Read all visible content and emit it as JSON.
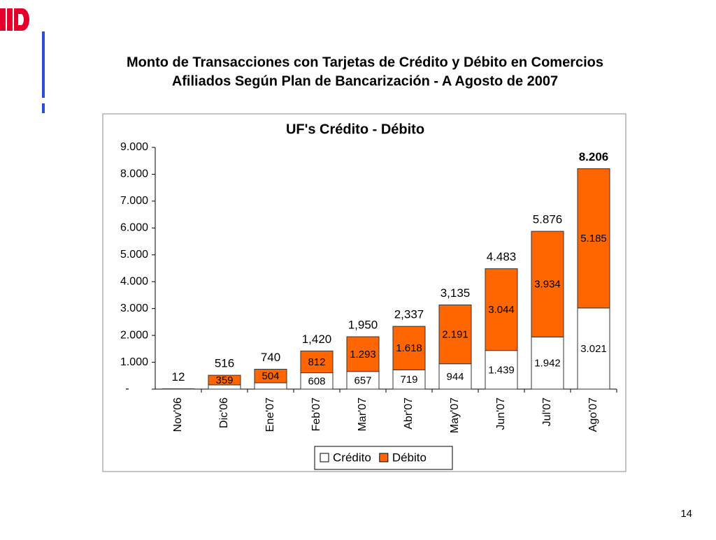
{
  "slide_title": [
    "Monto de Transacciones con Tarjetas de Crédito y Débito en Comercios",
    "Afiliados Según Plan de Bancarización - A Agosto de 2007"
  ],
  "page_number": "14",
  "chart_data": {
    "type": "stacked_bar",
    "title": "UF's Crédito - Débito",
    "categories": [
      "Nov'06",
      "Dic'06",
      "Ene'07",
      "Feb'07",
      "Mar'07",
      "Abr'07",
      "May'07",
      "Jun'07",
      "Jul'07",
      "Ago'07"
    ],
    "series": [
      {
        "name": "Crédito",
        "color": "#ffffff",
        "values": [
          12,
          157,
          236,
          608,
          657,
          719,
          944,
          1439,
          1942,
          3021
        ],
        "value_labels": [
          null,
          null,
          null,
          "608",
          "657",
          "719",
          "944",
          "1.439",
          "1.942",
          "3.021"
        ]
      },
      {
        "name": "Débito",
        "color": "#ff6600",
        "values": [
          0,
          359,
          504,
          812,
          1293,
          1618,
          2191,
          3044,
          3934,
          5185
        ],
        "value_labels": [
          null,
          "359",
          "504",
          "812",
          "1.293",
          "1.618",
          "2.191",
          "3.044",
          "3.934",
          "5.185"
        ]
      }
    ],
    "totals": {
      "values": [
        12,
        516,
        740,
        1420,
        1950,
        2337,
        3135,
        4483,
        5876,
        8206
      ],
      "value_labels": [
        "12",
        "516",
        "740",
        "1,420",
        "1,950",
        "2,337",
        "3,135",
        "4.483",
        "5.876",
        "8.206"
      ]
    },
    "ylim": [
      0,
      9000
    ],
    "yticks": [
      {
        "value": 0,
        "label": "-"
      },
      {
        "value": 1000,
        "label": "1.000"
      },
      {
        "value": 2000,
        "label": "2.000"
      },
      {
        "value": 3000,
        "label": "3.000"
      },
      {
        "value": 4000,
        "label": "4.000"
      },
      {
        "value": 5000,
        "label": "5.000"
      },
      {
        "value": 6000,
        "label": "6.000"
      },
      {
        "value": 7000,
        "label": "7.000"
      },
      {
        "value": 8000,
        "label": "8.000"
      },
      {
        "value": 9000,
        "label": "9.000"
      }
    ],
    "legend": "bottom"
  }
}
